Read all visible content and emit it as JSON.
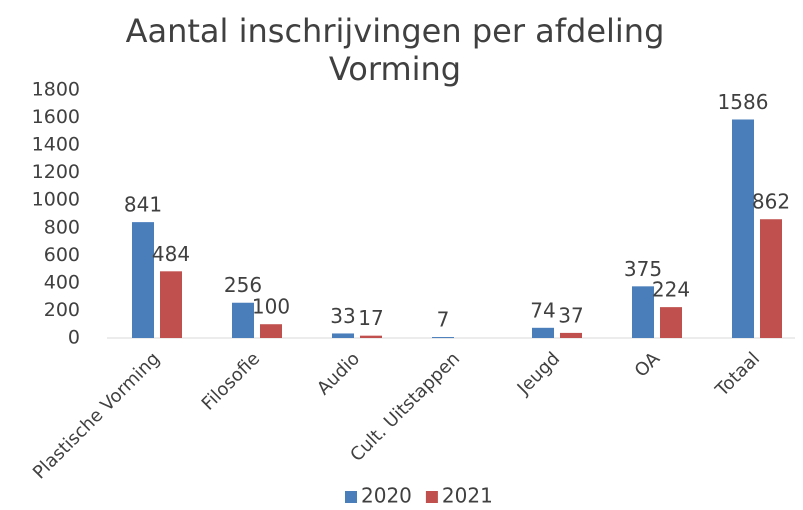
{
  "chart_data": {
    "type": "bar",
    "title": "Aantal inschrijvingen per afdeling Vorming",
    "categories": [
      "Plastische Vorming",
      "Filosofie",
      "Audio",
      "Cult. Uitstappen",
      "Jeugd",
      "OA",
      "Totaal"
    ],
    "series": [
      {
        "name": "2020",
        "color": "#4a7ebb",
        "values": [
          841,
          256,
          33,
          7,
          74,
          375,
          1586
        ]
      },
      {
        "name": "2021",
        "color": "#c0504d",
        "values": [
          484,
          100,
          17,
          null,
          37,
          224,
          862
        ]
      }
    ],
    "ylim": [
      0,
      1800
    ],
    "yticks": [
      0,
      200,
      400,
      600,
      800,
      1000,
      1200,
      1400,
      1600,
      1800
    ],
    "grid": false,
    "legend": "bottom"
  }
}
